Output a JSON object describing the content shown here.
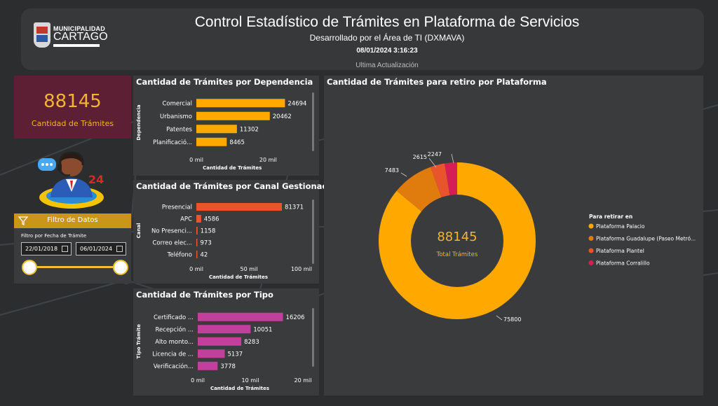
{
  "header": {
    "logo_line1": "MUNICIPALIDAD",
    "logo_line2": "CARTAGO",
    "title": "Control Estadístico de Trámites en Plataforma de Servicios",
    "subtitle": "Desarrollado por el Área de TI (DXMAVA)",
    "datetime": "08/01/2024 3:16:23",
    "last_update_label": "Ultima Actualización"
  },
  "kpi": {
    "value": "88145",
    "label": "Cantidad de Trámites"
  },
  "illustration": {
    "icon": "call-center-agent-24-icon"
  },
  "filter": {
    "title": "Filtro de Datos",
    "field_label": "Filtro por Fecha de Trámite",
    "from": "22/01/2018",
    "to": "06/01/2024",
    "range_fraction": [
      0.0,
      1.0
    ]
  },
  "colors": {
    "accent": "#f5b335",
    "orange": "#ffa800",
    "red": "#e8542b",
    "magenta": "#c33f9e",
    "kpi_bg": "#5c1f33"
  },
  "chart_data": [
    {
      "id": "dependencia",
      "type": "bar",
      "orientation": "horizontal",
      "title": "Cantidad de Trámites por Dependencia",
      "ylabel": "Dependencia",
      "xlabel": "Cantidad de Trámites",
      "categories": [
        "Comercial",
        "Urbanismo",
        "Patentes",
        "Planificació..."
      ],
      "values": [
        24694,
        20462,
        11302,
        8465
      ],
      "xlim": [
        0,
        25000
      ],
      "ticks": [
        {
          "v": 0,
          "label": "0 mil"
        },
        {
          "v": 20000,
          "label": "20 mil"
        }
      ],
      "color": "#ffa800"
    },
    {
      "id": "canal",
      "type": "bar",
      "orientation": "horizontal",
      "title": "Cantidad de Trámites por Canal Gestionado",
      "ylabel": "Canal",
      "xlabel": "Cantidad de Trámites",
      "categories": [
        "Presencial",
        "APC",
        "No Presenci...",
        "Correo elec...",
        "Teléfono"
      ],
      "values": [
        81371,
        4586,
        1158,
        973,
        42
      ],
      "xlim": [
        0,
        100000
      ],
      "ticks": [
        {
          "v": 0,
          "label": "0 mil"
        },
        {
          "v": 50000,
          "label": "50 mil"
        },
        {
          "v": 100000,
          "label": "100 mil"
        }
      ],
      "color": "#e8542b"
    },
    {
      "id": "tipo",
      "type": "bar",
      "orientation": "horizontal",
      "title": "Cantidad de Trámites por Tipo",
      "ylabel": "Tipo Trámite",
      "xlabel": "Cantidad de Trámites",
      "categories": [
        "Certificado ...",
        "Recepción ...",
        "Alto monto...",
        "Licencia de ...",
        "Verificación..."
      ],
      "values": [
        16206,
        10051,
        8283,
        5137,
        3778
      ],
      "xlim": [
        0,
        20000
      ],
      "ticks": [
        {
          "v": 0,
          "label": "0 mil"
        },
        {
          "v": 10000,
          "label": "10 mil"
        },
        {
          "v": 20000,
          "label": "20 mil"
        }
      ],
      "color": "#c33f9e"
    },
    {
      "id": "plataforma",
      "type": "pie",
      "donut": true,
      "title": "Cantidad de Trámites para retiro por Plataforma",
      "center_value": "88145",
      "center_label": "Total Trámites",
      "legend_title": "Para retirar en",
      "legend_position": "right",
      "labels": [
        "Plataforma Palacio",
        "Plataforma Guadalupe (Paseo Metró...",
        "Plataforma Plantel",
        "Plataforma Corralillo"
      ],
      "values": [
        75800,
        7483,
        2615,
        2247
      ],
      "colors": [
        "#ffa800",
        "#e07b0e",
        "#e8542b",
        "#d31f55"
      ]
    }
  ]
}
